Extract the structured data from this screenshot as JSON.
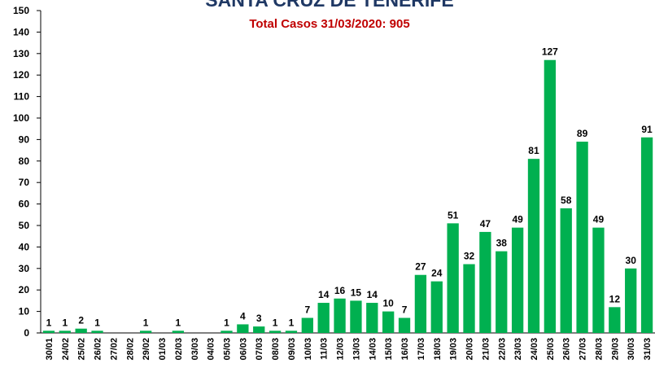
{
  "chart_data": {
    "type": "bar",
    "title": "SANTA CRUZ DE TENERIFE",
    "subtitle": "Total Casos 31/03/2020: 905",
    "categories": [
      "30/01",
      "24/02",
      "25/02",
      "26/02",
      "27/02",
      "28/02",
      "29/02",
      "01/03",
      "02/03",
      "03/03",
      "04/03",
      "05/03",
      "06/03",
      "07/03",
      "08/03",
      "09/03",
      "10/03",
      "11/03",
      "12/03",
      "13/03",
      "14/03",
      "15/03",
      "16/03",
      "17/03",
      "18/03",
      "19/03",
      "20/03",
      "21/03",
      "22/03",
      "23/03",
      "24/03",
      "25/03",
      "26/03",
      "27/03",
      "28/03",
      "29/03",
      "30/03",
      "31/03"
    ],
    "values": [
      1,
      1,
      2,
      1,
      0,
      0,
      1,
      0,
      1,
      0,
      0,
      1,
      4,
      3,
      1,
      1,
      7,
      14,
      16,
      15,
      14,
      10,
      7,
      27,
      24,
      51,
      32,
      47,
      38,
      49,
      81,
      127,
      58,
      89,
      49,
      12,
      30,
      91
    ],
    "color": "#00b050",
    "ylim": [
      0,
      150
    ],
    "yticks": [
      0,
      10,
      20,
      30,
      40,
      50,
      60,
      70,
      80,
      90,
      100,
      110,
      120,
      130,
      140,
      150
    ],
    "grid": false
  }
}
